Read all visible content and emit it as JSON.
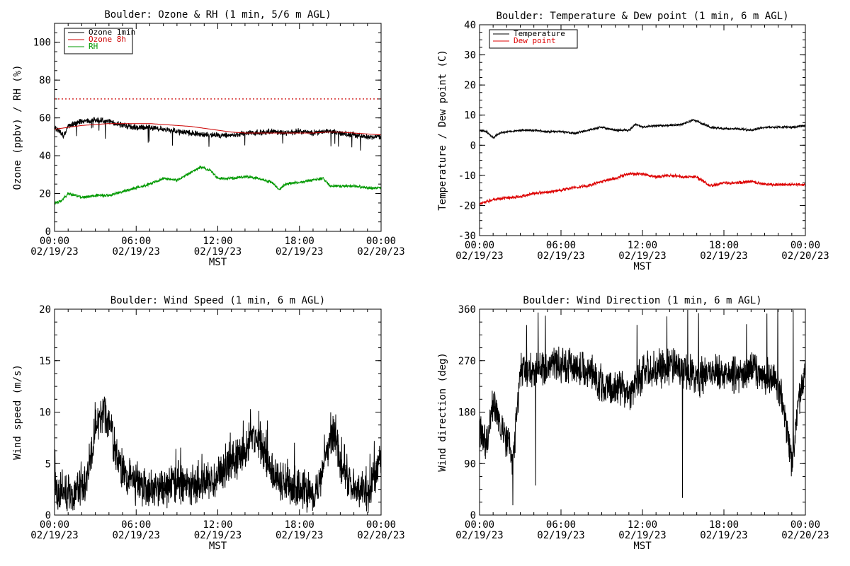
{
  "chart_data": [
    {
      "type": "line",
      "title": "Boulder: Ozone & RH (1 min, 5/6 m AGL)",
      "xlabel": "MST",
      "ylabel": "Ozone (ppbv) / RH (%)",
      "ylim": [
        0,
        110
      ],
      "yticks": [
        0,
        20,
        40,
        60,
        80,
        100
      ],
      "xlim": [
        "2023-02-19 00:00",
        "2023-02-20 00:00"
      ],
      "xticks": [
        {
          "time": "00:00",
          "date": "02/19/23"
        },
        {
          "time": "06:00",
          "date": "02/19/23"
        },
        {
          "time": "12:00",
          "date": "02/19/23"
        },
        {
          "time": "18:00",
          "date": "02/19/23"
        },
        {
          "time": "00:00",
          "date": "02/20/23"
        }
      ],
      "legend": "top-left",
      "reference_line": {
        "value": 70,
        "color": "#cc0000",
        "style": "dotted"
      },
      "series": [
        {
          "name": "Ozone 1min",
          "color": "#000000",
          "noise": 1.2,
          "points": [
            [
              "00:00",
              55
            ],
            [
              "00:20",
              53
            ],
            [
              "00:40",
              50
            ],
            [
              "01:00",
              56
            ],
            [
              "02:00",
              58
            ],
            [
              "03:00",
              59
            ],
            [
              "04:00",
              58
            ],
            [
              "05:00",
              56
            ],
            [
              "06:00",
              55
            ],
            [
              "07:00",
              55
            ],
            [
              "08:00",
              54
            ],
            [
              "09:00",
              53
            ],
            [
              "10:00",
              52
            ],
            [
              "11:00",
              51
            ],
            [
              "12:00",
              51
            ],
            [
              "13:00",
              51
            ],
            [
              "14:00",
              52
            ],
            [
              "15:00",
              52
            ],
            [
              "16:00",
              53
            ],
            [
              "17:00",
              52
            ],
            [
              "18:00",
              53
            ],
            [
              "19:00",
              52
            ],
            [
              "20:00",
              53
            ],
            [
              "21:00",
              52
            ],
            [
              "22:00",
              51
            ],
            [
              "23:00",
              50
            ],
            [
              "24:00",
              50
            ]
          ]
        },
        {
          "name": "Ozone 8h",
          "color": "#cc0000",
          "noise": 0,
          "points": [
            [
              "00:00",
              54
            ],
            [
              "01:00",
              55
            ],
            [
              "02:00",
              56
            ],
            [
              "03:00",
              56.5
            ],
            [
              "04:00",
              57
            ],
            [
              "05:00",
              57
            ],
            [
              "06:00",
              57
            ],
            [
              "07:00",
              57
            ],
            [
              "08:00",
              56.5
            ],
            [
              "09:00",
              56
            ],
            [
              "10:00",
              55.5
            ],
            [
              "11:00",
              54.5
            ],
            [
              "12:00",
              53.5
            ],
            [
              "13:00",
              52.5
            ],
            [
              "14:00",
              52
            ],
            [
              "15:00",
              52
            ],
            [
              "16:00",
              52
            ],
            [
              "17:00",
              52
            ],
            [
              "18:00",
              52
            ],
            [
              "19:00",
              52
            ],
            [
              "20:00",
              52.5
            ],
            [
              "21:00",
              52.5
            ],
            [
              "22:00",
              52
            ],
            [
              "23:00",
              51.5
            ],
            [
              "24:00",
              51
            ]
          ]
        },
        {
          "name": "RH",
          "color": "#009900",
          "noise": 0.6,
          "points": [
            [
              "00:00",
              15
            ],
            [
              "00:30",
              16
            ],
            [
              "01:00",
              20
            ],
            [
              "02:00",
              18
            ],
            [
              "03:00",
              19
            ],
            [
              "04:00",
              19
            ],
            [
              "05:00",
              21
            ],
            [
              "06:00",
              23
            ],
            [
              "07:00",
              25
            ],
            [
              "08:00",
              28
            ],
            [
              "09:00",
              27
            ],
            [
              "10:00",
              31
            ],
            [
              "10:45",
              34
            ],
            [
              "11:30",
              32
            ],
            [
              "12:00",
              28
            ],
            [
              "13:00",
              28
            ],
            [
              "14:00",
              29
            ],
            [
              "15:00",
              28
            ],
            [
              "16:00",
              26
            ],
            [
              "16:30",
              22
            ],
            [
              "17:00",
              25
            ],
            [
              "18:00",
              26
            ],
            [
              "19:00",
              27
            ],
            [
              "19:45",
              28
            ],
            [
              "20:15",
              24
            ],
            [
              "21:00",
              24
            ],
            [
              "22:00",
              24
            ],
            [
              "23:00",
              23
            ],
            [
              "24:00",
              23
            ]
          ]
        }
      ]
    },
    {
      "type": "line",
      "title": "Boulder: Temperature & Dew point (1 min, 6 m AGL)",
      "xlabel": "MST",
      "ylabel": "Temperature / Dew point (C)",
      "ylim": [
        -30,
        40
      ],
      "yticks": [
        -30,
        -20,
        -10,
        0,
        10,
        20,
        30,
        40
      ],
      "xlim": [
        "2023-02-19 00:00",
        "2023-02-20 00:00"
      ],
      "xticks": [
        {
          "time": "00:00",
          "date": "02/19/23"
        },
        {
          "time": "06:00",
          "date": "02/19/23"
        },
        {
          "time": "12:00",
          "date": "02/19/23"
        },
        {
          "time": "18:00",
          "date": "02/19/23"
        },
        {
          "time": "00:00",
          "date": "02/20/23"
        }
      ],
      "legend": "top-left",
      "series": [
        {
          "name": "Temperature",
          "color": "#000000",
          "noise": 0.3,
          "points": [
            [
              "00:00",
              5
            ],
            [
              "00:30",
              4.5
            ],
            [
              "01:00",
              2.5
            ],
            [
              "01:30",
              4
            ],
            [
              "02:00",
              4.5
            ],
            [
              "03:00",
              5
            ],
            [
              "04:00",
              5
            ],
            [
              "05:00",
              4.5
            ],
            [
              "06:00",
              4.5
            ],
            [
              "07:00",
              4
            ],
            [
              "08:00",
              5
            ],
            [
              "09:00",
              6
            ],
            [
              "10:00",
              5
            ],
            [
              "11:00",
              5
            ],
            [
              "11:30",
              7
            ],
            [
              "12:00",
              6
            ],
            [
              "13:00",
              6.5
            ],
            [
              "14:00",
              6.5
            ],
            [
              "15:00",
              7
            ],
            [
              "15:45",
              8.5
            ],
            [
              "16:30",
              7
            ],
            [
              "17:00",
              6
            ],
            [
              "18:00",
              5.5
            ],
            [
              "19:00",
              5.5
            ],
            [
              "20:00",
              5
            ],
            [
              "21:00",
              6
            ],
            [
              "22:00",
              6
            ],
            [
              "23:00",
              6
            ],
            [
              "24:00",
              6.5
            ]
          ]
        },
        {
          "name": "Dew point",
          "color": "#dd0000",
          "noise": 0.4,
          "points": [
            [
              "00:00",
              -19.5
            ],
            [
              "01:00",
              -18
            ],
            [
              "02:00",
              -17.5
            ],
            [
              "03:00",
              -17
            ],
            [
              "04:00",
              -16
            ],
            [
              "05:00",
              -15.5
            ],
            [
              "06:00",
              -15
            ],
            [
              "07:00",
              -14
            ],
            [
              "08:00",
              -13.5
            ],
            [
              "09:00",
              -12
            ],
            [
              "10:00",
              -11
            ],
            [
              "11:00",
              -9.5
            ],
            [
              "12:00",
              -9.5
            ],
            [
              "13:00",
              -10.5
            ],
            [
              "14:00",
              -10
            ],
            [
              "15:00",
              -10.5
            ],
            [
              "16:00",
              -10.5
            ],
            [
              "17:00",
              -13.5
            ],
            [
              "18:00",
              -12.5
            ],
            [
              "19:00",
              -12.5
            ],
            [
              "20:00",
              -12
            ],
            [
              "21:00",
              -13
            ],
            [
              "22:00",
              -13
            ],
            [
              "23:00",
              -13
            ],
            [
              "24:00",
              -13
            ]
          ]
        }
      ]
    },
    {
      "type": "line",
      "title": "Boulder: Wind Speed (1 min, 6 m AGL)",
      "xlabel": "MST",
      "ylabel": "Wind speed (m/s)",
      "ylim": [
        0,
        20
      ],
      "yticks": [
        0,
        5,
        10,
        15,
        20
      ],
      "xlim": [
        "2023-02-19 00:00",
        "2023-02-20 00:00"
      ],
      "xticks": [
        {
          "time": "00:00",
          "date": "02/19/23"
        },
        {
          "time": "06:00",
          "date": "02/19/23"
        },
        {
          "time": "12:00",
          "date": "02/19/23"
        },
        {
          "time": "18:00",
          "date": "02/19/23"
        },
        {
          "time": "00:00",
          "date": "02/20/23"
        }
      ],
      "series": [
        {
          "name": "",
          "color": "#000000",
          "noise": 1.5,
          "points": [
            [
              "00:00",
              2
            ],
            [
              "01:00",
              2
            ],
            [
              "02:00",
              2.5
            ],
            [
              "02:30",
              4
            ],
            [
              "03:00",
              8
            ],
            [
              "03:30",
              10
            ],
            [
              "04:00",
              9
            ],
            [
              "04:30",
              6
            ],
            [
              "05:00",
              4
            ],
            [
              "06:00",
              3
            ],
            [
              "07:00",
              2.5
            ],
            [
              "08:00",
              2.5
            ],
            [
              "09:00",
              3
            ],
            [
              "10:00",
              3
            ],
            [
              "11:00",
              3
            ],
            [
              "12:00",
              3.5
            ],
            [
              "13:00",
              5
            ],
            [
              "14:00",
              6
            ],
            [
              "14:30",
              8
            ],
            [
              "15:00",
              7
            ],
            [
              "16:00",
              4
            ],
            [
              "17:00",
              3
            ],
            [
              "18:00",
              2.5
            ],
            [
              "19:00",
              2
            ],
            [
              "19:30",
              3
            ],
            [
              "20:00",
              6
            ],
            [
              "20:30",
              8
            ],
            [
              "21:00",
              5
            ],
            [
              "22:00",
              2.5
            ],
            [
              "23:00",
              2
            ],
            [
              "24:00",
              5
            ]
          ]
        }
      ]
    },
    {
      "type": "line",
      "title": "Boulder: Wind Direction (1 min, 6 m AGL)",
      "xlabel": "MST",
      "ylabel": "Wind direction (deg)",
      "ylim": [
        0,
        360
      ],
      "yticks": [
        0,
        90,
        180,
        270,
        360
      ],
      "xlim": [
        "2023-02-19 00:00",
        "2023-02-20 00:00"
      ],
      "xticks": [
        {
          "time": "00:00",
          "date": "02/19/23"
        },
        {
          "time": "06:00",
          "date": "02/19/23"
        },
        {
          "time": "12:00",
          "date": "02/19/23"
        },
        {
          "time": "18:00",
          "date": "02/19/23"
        },
        {
          "time": "00:00",
          "date": "02/20/23"
        }
      ],
      "series": [
        {
          "name": "",
          "color": "#000000",
          "noise": 25,
          "points": [
            [
              "00:00",
              150
            ],
            [
              "00:30",
              120
            ],
            [
              "01:00",
              200
            ],
            [
              "01:30",
              160
            ],
            [
              "02:00",
              130
            ],
            [
              "02:30",
              100
            ],
            [
              "03:00",
              250
            ],
            [
              "04:00",
              255
            ],
            [
              "05:00",
              255
            ],
            [
              "06:00",
              265
            ],
            [
              "07:00",
              260
            ],
            [
              "08:00",
              250
            ],
            [
              "09:00",
              230
            ],
            [
              "10:00",
              220
            ],
            [
              "11:00",
              210
            ],
            [
              "12:00",
              250
            ],
            [
              "13:00",
              255
            ],
            [
              "14:00",
              260
            ],
            [
              "15:00",
              255
            ],
            [
              "16:00",
              240
            ],
            [
              "17:00",
              250
            ],
            [
              "18:00",
              250
            ],
            [
              "19:00",
              245
            ],
            [
              "20:00",
              255
            ],
            [
              "21:00",
              245
            ],
            [
              "22:00",
              230
            ],
            [
              "22:30",
              180
            ],
            [
              "23:00",
              90
            ],
            [
              "23:30",
              200
            ],
            [
              "24:00",
              260
            ]
          ]
        }
      ]
    }
  ]
}
